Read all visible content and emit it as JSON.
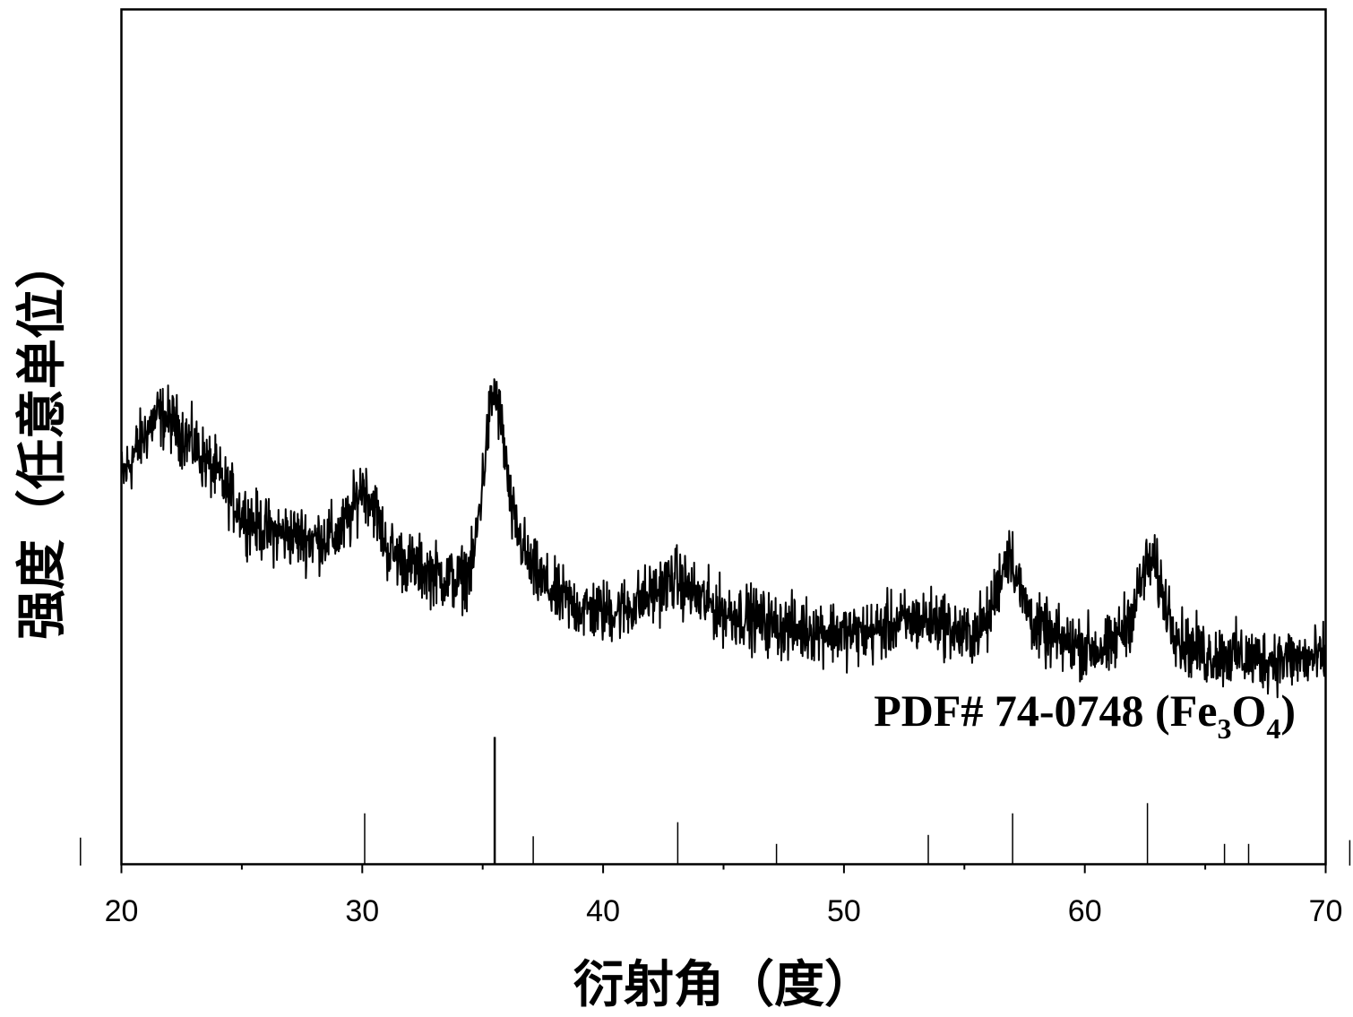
{
  "chart_data": {
    "type": "line",
    "xlabel": "衍射角（度）",
    "ylabel": "强度（任意单位）",
    "xlim": [
      20,
      70
    ],
    "x_ticks": [
      20,
      30,
      40,
      50,
      60,
      70
    ],
    "x_tick_labels": [
      "20",
      "30",
      "40",
      "50",
      "60",
      "70"
    ],
    "x_minor_step": 5,
    "ylim": [
      0,
      100
    ],
    "grid": false,
    "line_color": "#000000",
    "pattern_profile": {
      "x": [
        20.0,
        21.0,
        21.5,
        22.0,
        23.0,
        24.0,
        25.0,
        26.0,
        27.0,
        28.0,
        29.0,
        29.5,
        30.0,
        30.5,
        31.0,
        32.0,
        33.0,
        34.0,
        34.6,
        35.0,
        35.3,
        35.5,
        35.8,
        36.2,
        37.0,
        38.0,
        39.0,
        40.0,
        41.0,
        42.0,
        43.0,
        44.0,
        45.0,
        46.0,
        47.0,
        48.0,
        49.0,
        50.0,
        51.0,
        52.0,
        53.0,
        54.0,
        55.0,
        56.0,
        56.5,
        56.9,
        57.3,
        58.0,
        59.0,
        60.0,
        61.0,
        62.0,
        62.5,
        62.8,
        63.5,
        64.0,
        65.0,
        66.0,
        67.0,
        68.0,
        69.0,
        70.0
      ],
      "y": [
        45.0,
        50.5,
        52.5,
        52.0,
        49.0,
        45.5,
        41.0,
        39.0,
        38.5,
        38.0,
        38.5,
        40.5,
        44.5,
        42.0,
        37.0,
        35.0,
        34.0,
        33.0,
        35.0,
        45.0,
        53.0,
        55.5,
        51.0,
        41.0,
        34.5,
        31.5,
        30.0,
        29.5,
        30.0,
        31.5,
        33.5,
        31.0,
        29.5,
        29.0,
        28.0,
        27.5,
        27.5,
        27.0,
        27.0,
        28.0,
        28.5,
        28.5,
        26.5,
        28.5,
        34.0,
        37.0,
        32.0,
        27.5,
        26.0,
        25.5,
        25.0,
        29.5,
        34.5,
        35.5,
        29.5,
        26.0,
        24.5,
        24.5,
        24.0,
        24.0,
        24.0,
        24.0
      ]
    },
    "noise_amplitude": 2.6,
    "reference_annotation": {
      "prefix": "PDF# 74-0748 (Fe",
      "sub1": "3",
      "mid": "O",
      "sub2": "4",
      "suffix": ")"
    },
    "reference_lines": {
      "x": [
        18.3,
        30.1,
        35.5,
        37.1,
        43.1,
        47.2,
        53.5,
        57.0,
        62.6,
        65.8,
        66.8,
        71.0
      ],
      "relative_intensity": [
        22,
        40,
        100,
        22,
        33,
        16,
        23,
        40,
        48,
        16,
        16,
        20
      ]
    }
  }
}
